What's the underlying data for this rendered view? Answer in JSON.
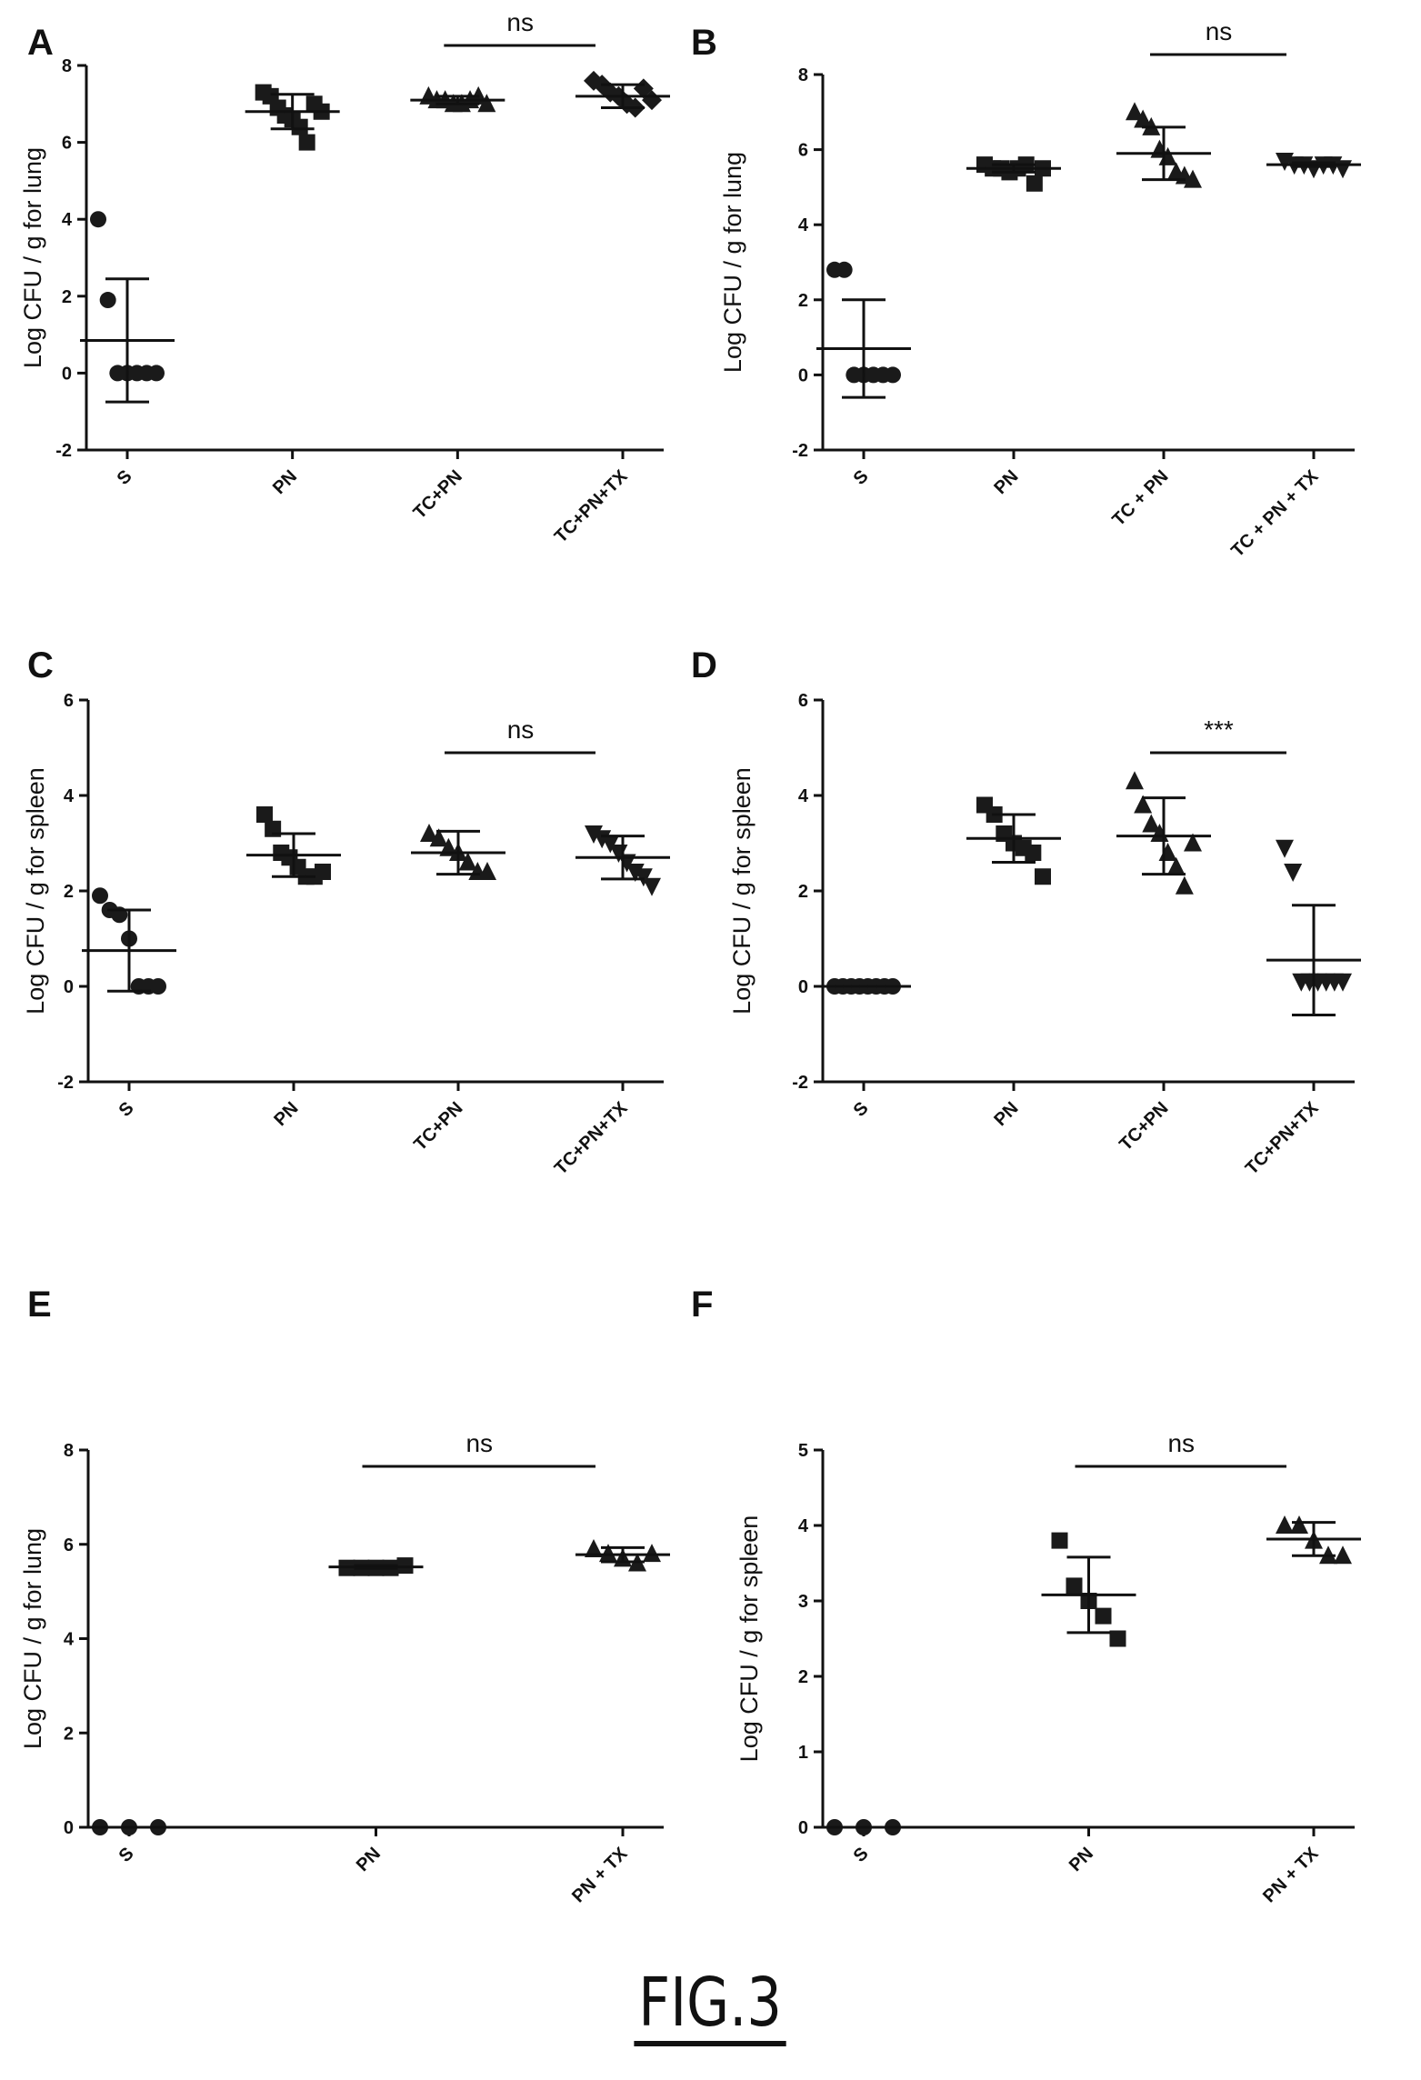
{
  "figure_caption": "FIG.3",
  "chart_data": [
    {
      "panel": "A",
      "type": "scatter",
      "ylabel": "Log CFU / g for lung",
      "ylim": [
        -2,
        8
      ],
      "yticks": [
        -2,
        0,
        2,
        4,
        6,
        8
      ],
      "categories": [
        "S",
        "PN",
        "TC+PN",
        "TC+PN+TX"
      ],
      "markers": [
        "circle",
        "square",
        "triangle-up",
        "diamond"
      ],
      "points": [
        [
          4.0,
          1.9,
          0,
          0,
          0,
          0,
          0
        ],
        [
          7.3,
          7.2,
          6.9,
          6.7,
          6.6,
          6.4,
          6.0,
          7.0,
          6.8
        ],
        [
          7.2,
          7.1,
          7.1,
          7.0,
          7.0,
          7.1,
          7.2,
          7.0
        ],
        [
          7.6,
          7.5,
          7.3,
          7.2,
          7.0,
          6.9,
          7.4,
          7.1
        ]
      ],
      "mean": [
        0.85,
        6.8,
        7.1,
        7.2
      ],
      "sd": [
        1.6,
        0.45,
        0.1,
        0.3
      ],
      "significance": [
        {
          "from": 2,
          "to": 3,
          "label": "ns"
        }
      ]
    },
    {
      "panel": "B",
      "type": "scatter",
      "ylabel": "Log CFU / g for lung",
      "ylim": [
        -2,
        8
      ],
      "yticks": [
        -2,
        0,
        2,
        4,
        6,
        8
      ],
      "categories": [
        "S",
        "PN",
        "TC + PN",
        "TC + PN + TX"
      ],
      "markers": [
        "circle",
        "square",
        "triangle-up",
        "triangle-down"
      ],
      "points": [
        [
          2.8,
          2.8,
          0,
          0,
          0,
          0,
          0
        ],
        [
          5.6,
          5.5,
          5.5,
          5.4,
          5.5,
          5.6,
          5.1,
          5.5
        ],
        [
          7.0,
          6.8,
          6.6,
          6.0,
          5.8,
          5.4,
          5.3,
          5.2
        ],
        [
          5.7,
          5.6,
          5.6,
          5.5,
          5.6,
          5.6,
          5.5
        ]
      ],
      "mean": [
        0.7,
        5.5,
        5.9,
        5.6
      ],
      "sd": [
        1.3,
        0.1,
        0.7,
        0.05
      ],
      "significance": [
        {
          "from": 2,
          "to": 3,
          "label": "ns"
        }
      ]
    },
    {
      "panel": "C",
      "type": "scatter",
      "ylabel": "Log CFU / g for spleen",
      "ylim": [
        -2,
        6
      ],
      "yticks": [
        -2,
        0,
        2,
        4,
        6
      ],
      "categories": [
        "S",
        "PN",
        "TC+PN",
        "TC+PN+TX"
      ],
      "markers": [
        "circle",
        "square",
        "triangle-up",
        "triangle-down"
      ],
      "points": [
        [
          1.9,
          1.6,
          1.5,
          1.0,
          0,
          0,
          0
        ],
        [
          3.6,
          3.3,
          2.8,
          2.7,
          2.5,
          2.3,
          2.3,
          2.4
        ],
        [
          3.2,
          3.1,
          2.9,
          2.8,
          2.6,
          2.4,
          2.4
        ],
        [
          3.2,
          3.1,
          3.0,
          2.8,
          2.6,
          2.4,
          2.3,
          2.1
        ]
      ],
      "mean": [
        0.75,
        2.75,
        2.8,
        2.7
      ],
      "sd": [
        0.85,
        0.45,
        0.45,
        0.45
      ],
      "significance": [
        {
          "from": 2,
          "to": 3,
          "label": "ns"
        }
      ]
    },
    {
      "panel": "D",
      "type": "scatter",
      "ylabel": "Log CFU / g for spleen",
      "ylim": [
        -2,
        6
      ],
      "yticks": [
        -2,
        0,
        2,
        4,
        6
      ],
      "categories": [
        "S",
        "PN",
        "TC+PN",
        "TC+PN+TX"
      ],
      "markers": [
        "circle",
        "square",
        "triangle-up",
        "triangle-down"
      ],
      "points": [
        [
          0,
          0,
          0,
          0,
          0,
          0,
          0,
          0
        ],
        [
          3.8,
          3.6,
          3.2,
          3.0,
          2.9,
          2.8,
          2.3
        ],
        [
          4.3,
          3.8,
          3.4,
          3.2,
          2.8,
          2.5,
          2.1,
          3.0
        ],
        [
          2.9,
          2.4,
          0.1,
          0.1,
          0.1,
          0.1,
          0.1,
          0.1
        ]
      ],
      "mean": [
        0,
        3.1,
        3.15,
        0.55
      ],
      "sd": [
        0,
        0.5,
        0.8,
        1.15
      ],
      "significance": [
        {
          "from": 2,
          "to": 3,
          "label": "***"
        }
      ]
    },
    {
      "panel": "E",
      "type": "scatter",
      "ylabel": "Log CFU / g for lung",
      "ylim": [
        0,
        8
      ],
      "yticks": [
        0,
        2,
        4,
        6,
        8
      ],
      "categories": [
        "S",
        "PN",
        "PN + TX"
      ],
      "markers": [
        "circle",
        "square",
        "triangle-up"
      ],
      "points": [
        [
          0,
          0,
          0
        ],
        [
          5.5,
          5.5,
          5.5,
          5.5,
          5.55
        ],
        [
          5.9,
          5.8,
          5.7,
          5.6,
          5.8
        ]
      ],
      "mean": [
        0,
        5.52,
        5.78
      ],
      "sd": [
        0,
        0.03,
        0.15
      ],
      "significance": [
        {
          "from": 1,
          "to": 2,
          "label": "ns"
        }
      ]
    },
    {
      "panel": "F",
      "type": "scatter",
      "ylabel": "Log CFU / g for spleen",
      "ylim": [
        0,
        5
      ],
      "yticks": [
        0,
        1,
        2,
        3,
        4,
        5
      ],
      "categories": [
        "S",
        "PN",
        "PN + TX"
      ],
      "markers": [
        "circle",
        "square",
        "triangle-up"
      ],
      "points": [
        [
          0,
          0,
          0
        ],
        [
          3.8,
          3.2,
          3.0,
          2.8,
          2.5
        ],
        [
          4.0,
          4.0,
          3.8,
          3.6,
          3.6
        ]
      ],
      "mean": [
        0,
        3.08,
        3.82
      ],
      "sd": [
        0,
        0.5,
        0.22
      ],
      "significance": [
        {
          "from": 1,
          "to": 2,
          "label": "ns"
        }
      ]
    }
  ]
}
